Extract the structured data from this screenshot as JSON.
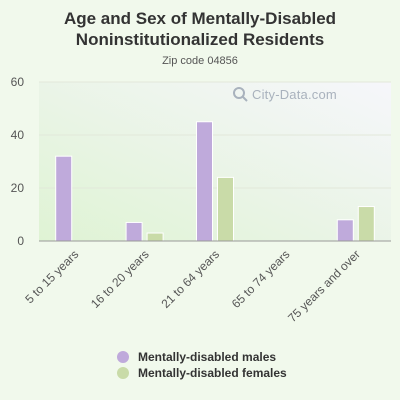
{
  "header": {
    "title_line1": "Age and Sex of Mentally-Disabled",
    "title_line2": "Noninstitutionalized Residents",
    "subtitle": "Zip code 04856"
  },
  "watermark": {
    "text": "City-Data.com"
  },
  "colors": {
    "males": "#bfaadb",
    "females": "#c9dba8",
    "background_top": "#f4f6fb",
    "background_bottom": "#e6f5dc",
    "axis_text": "#555555"
  },
  "chart_data": {
    "type": "bar",
    "title": "Age and Sex of Mentally-Disabled Noninstitutionalized Residents",
    "subtitle": "Zip code 04856",
    "categories": [
      "5 to 15 years",
      "16 to 20 years",
      "21 to 64 years",
      "65 to 74 years",
      "75 years and over"
    ],
    "series": [
      {
        "name": "Mentally-disabled males",
        "values": [
          32,
          7,
          45,
          0,
          8
        ]
      },
      {
        "name": "Mentally-disabled females",
        "values": [
          0,
          3,
          24,
          0,
          13
        ]
      }
    ],
    "ylim": [
      0,
      60
    ],
    "yticks": [
      0,
      20,
      40,
      60
    ],
    "grid": true,
    "legend": "bottom"
  }
}
